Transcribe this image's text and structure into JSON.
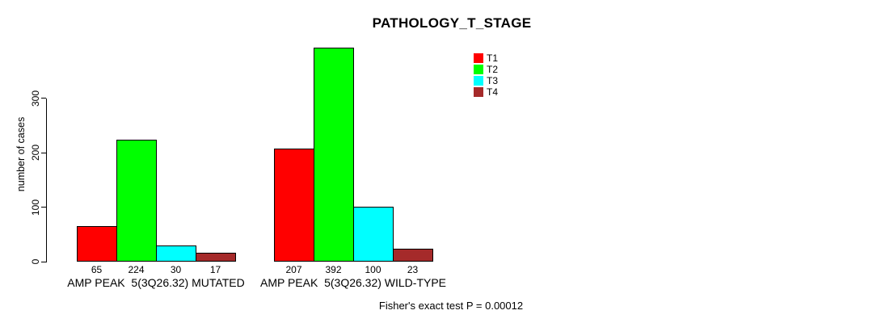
{
  "chart_data": {
    "type": "bar",
    "title": "PATHOLOGY_T_STAGE",
    "ylabel": "number of cases",
    "xlabel": "",
    "yticks": [
      0,
      100,
      200,
      300
    ],
    "ylim": [
      0,
      400
    ],
    "grid": false,
    "legend_position": "top-right",
    "legend": [
      {
        "label": "T1",
        "color": "#FF0000"
      },
      {
        "label": "T2",
        "color": "#00FF00"
      },
      {
        "label": "T3",
        "color": "#00FFFF"
      },
      {
        "label": "T4",
        "color": "#A52A2A"
      }
    ],
    "groups": [
      {
        "label": "AMP PEAK  5(3Q26.32) MUTATED",
        "values": [
          65,
          224,
          30,
          17
        ]
      },
      {
        "label": "AMP PEAK  5(3Q26.32) WILD-TYPE",
        "values": [
          207,
          392,
          100,
          23
        ]
      }
    ],
    "footnote": "Fisher's exact test P = 0.00012"
  }
}
